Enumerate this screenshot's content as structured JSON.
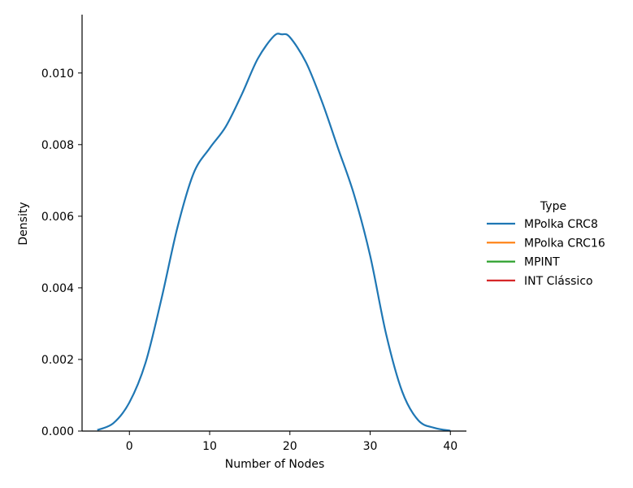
{
  "chart_data": {
    "type": "line",
    "title": "",
    "xlabel": "Number of Nodes",
    "ylabel": "Density",
    "xlim": [
      -5.9,
      42.0
    ],
    "ylim": [
      0.0,
      0.01163
    ],
    "xticks": [
      0,
      10,
      20,
      30,
      40
    ],
    "yticks": [
      0.0,
      0.002,
      0.004,
      0.006,
      0.008,
      0.01
    ],
    "ytick_labels": [
      "0.000",
      "0.002",
      "0.004",
      "0.006",
      "0.008",
      "0.010"
    ],
    "grid": false,
    "legend": {
      "title": "Type",
      "position": "right",
      "entries": [
        "MPolka CRC8",
        "MPolka CRC16",
        "MPINT",
        "INT Clássico"
      ]
    },
    "colors": [
      "#1f77b4",
      "#ff7f0e",
      "#2ca02c",
      "#d62728"
    ],
    "series": [
      {
        "name": "MPolka CRC8",
        "x": [
          -4,
          -2,
          0,
          2,
          4,
          6,
          8,
          10,
          12,
          14,
          16,
          18,
          19,
          20,
          22,
          24,
          26,
          28,
          30,
          32,
          34,
          36,
          38,
          40
        ],
        "y": [
          3e-05,
          0.00022,
          0.0008,
          0.0019,
          0.0037,
          0.0057,
          0.0072,
          0.0079,
          0.0085,
          0.0094,
          0.0104,
          0.01103,
          0.01108,
          0.011,
          0.0103,
          0.0092,
          0.0079,
          0.0066,
          0.0049,
          0.0027,
          0.0011,
          0.0003,
          9e-05,
          1e-05
        ]
      },
      {
        "name": "MPolka CRC16",
        "x": [],
        "y": []
      },
      {
        "name": "MPINT",
        "x": [],
        "y": []
      },
      {
        "name": "INT Clássico",
        "x": [],
        "y": []
      }
    ]
  }
}
